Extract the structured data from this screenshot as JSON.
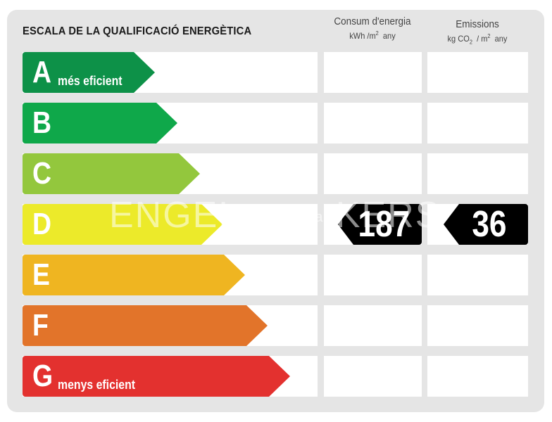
{
  "title": "ESCALA DE LA QUALIFICACIÓ ENERGÈTICA",
  "columns": {
    "consumption": {
      "title": "Consum d'energia",
      "unit_prefix": "kWh /m",
      "unit_sup": "2",
      "unit_suffix": "any"
    },
    "emissions": {
      "title": "Emissions",
      "unit_prefix": "kg CO",
      "unit_sub": "2",
      "unit_mid": "/ m",
      "unit_sup": "2",
      "unit_suffix": "any"
    }
  },
  "ratings": [
    {
      "letter": "A",
      "label": "més eficient",
      "color": "#0d9148"
    },
    {
      "letter": "B",
      "label": "",
      "color": "#0fa84a"
    },
    {
      "letter": "C",
      "label": "",
      "color": "#93c73d"
    },
    {
      "letter": "D",
      "label": "",
      "color": "#ecea2a"
    },
    {
      "letter": "E",
      "label": "",
      "color": "#efb521"
    },
    {
      "letter": "F",
      "label": "",
      "color": "#e2742a"
    },
    {
      "letter": "G",
      "label": "menys eficient",
      "color": "#e3312f"
    }
  ],
  "result": {
    "rating": "D",
    "consumption_value": "187",
    "emissions_value": "36"
  },
  "watermark": {
    "left": "ENGEL",
    "middle": "habitaclia",
    "right": "KERS"
  }
}
